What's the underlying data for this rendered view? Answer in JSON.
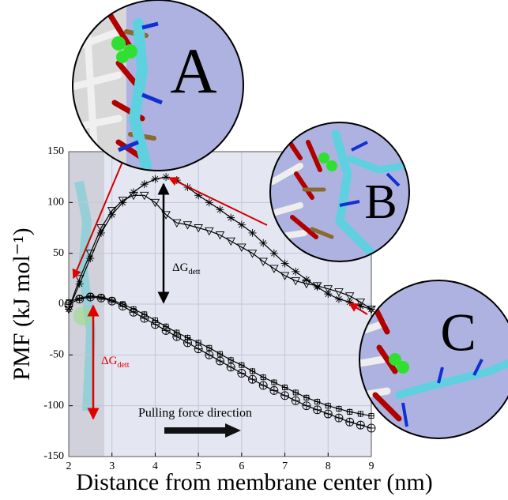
{
  "chart_data": {
    "type": "line",
    "xlabel": "Distance from membrane center (nm)",
    "ylabel": "PMF (kJ mol⁻¹)",
    "xlim": [
      2,
      9
    ],
    "xticks": [
      2,
      3,
      4,
      5,
      6,
      7,
      8,
      9
    ],
    "ylim": [
      -150,
      150
    ],
    "yticks": [
      -150,
      -100,
      -50,
      0,
      50,
      100,
      150
    ],
    "grid": true,
    "x": [
      2,
      2.25,
      2.5,
      2.75,
      3,
      3.25,
      3.5,
      3.75,
      4,
      4.25,
      4.5,
      4.75,
      5,
      5.25,
      5.5,
      5.75,
      6,
      6.25,
      6.5,
      6.75,
      7,
      7.25,
      7.5,
      7.75,
      8,
      8.25,
      8.5,
      8.75,
      9
    ],
    "series": [
      {
        "marker": "asterisk",
        "color": "#000000",
        "values": [
          -5,
          20,
          45,
          70,
          88,
          100,
          110,
          118,
          123,
          125,
          122,
          115,
          107,
          100,
          93,
          85,
          78,
          70,
          60,
          50,
          40,
          32,
          24,
          17,
          10,
          5,
          2,
          -2,
          -5
        ]
      },
      {
        "marker": "triangle-down",
        "color": "#000000",
        "values": [
          -5,
          25,
          50,
          75,
          92,
          102,
          107,
          107,
          100,
          88,
          80,
          78,
          75,
          72,
          68,
          62,
          56,
          50,
          42,
          35,
          28,
          23,
          20,
          18,
          15,
          12,
          8,
          2,
          -5
        ]
      },
      {
        "marker": "circle-plus",
        "color": "#000000",
        "values": [
          0,
          5,
          7,
          6,
          3,
          -2,
          -8,
          -14,
          -20,
          -26,
          -32,
          -38,
          -44,
          -50,
          -56,
          -62,
          -68,
          -74,
          -80,
          -85,
          -90,
          -95,
          -100,
          -104,
          -108,
          -112,
          -116,
          -119,
          -122
        ]
      },
      {
        "marker": "plus",
        "color": "#000000",
        "values": [
          2,
          6,
          8,
          7,
          4,
          0,
          -5,
          -10,
          -16,
          -22,
          -28,
          -33,
          -38,
          -43,
          -49,
          -55,
          -60,
          -66,
          -72,
          -77,
          -82,
          -87,
          -92,
          -96,
          -100,
          -103,
          -106,
          -108,
          -110
        ]
      }
    ],
    "annotations": [
      {
        "text": "ΔG",
        "subscript": "dett",
        "color": "#000000"
      },
      {
        "text": "ΔG",
        "subscript": "dett",
        "color": "#e00000"
      },
      {
        "text": "Pulling force direction",
        "color": "#000000"
      }
    ],
    "insets": [
      {
        "label": "A"
      },
      {
        "label": "B"
      },
      {
        "label": "C"
      }
    ]
  }
}
